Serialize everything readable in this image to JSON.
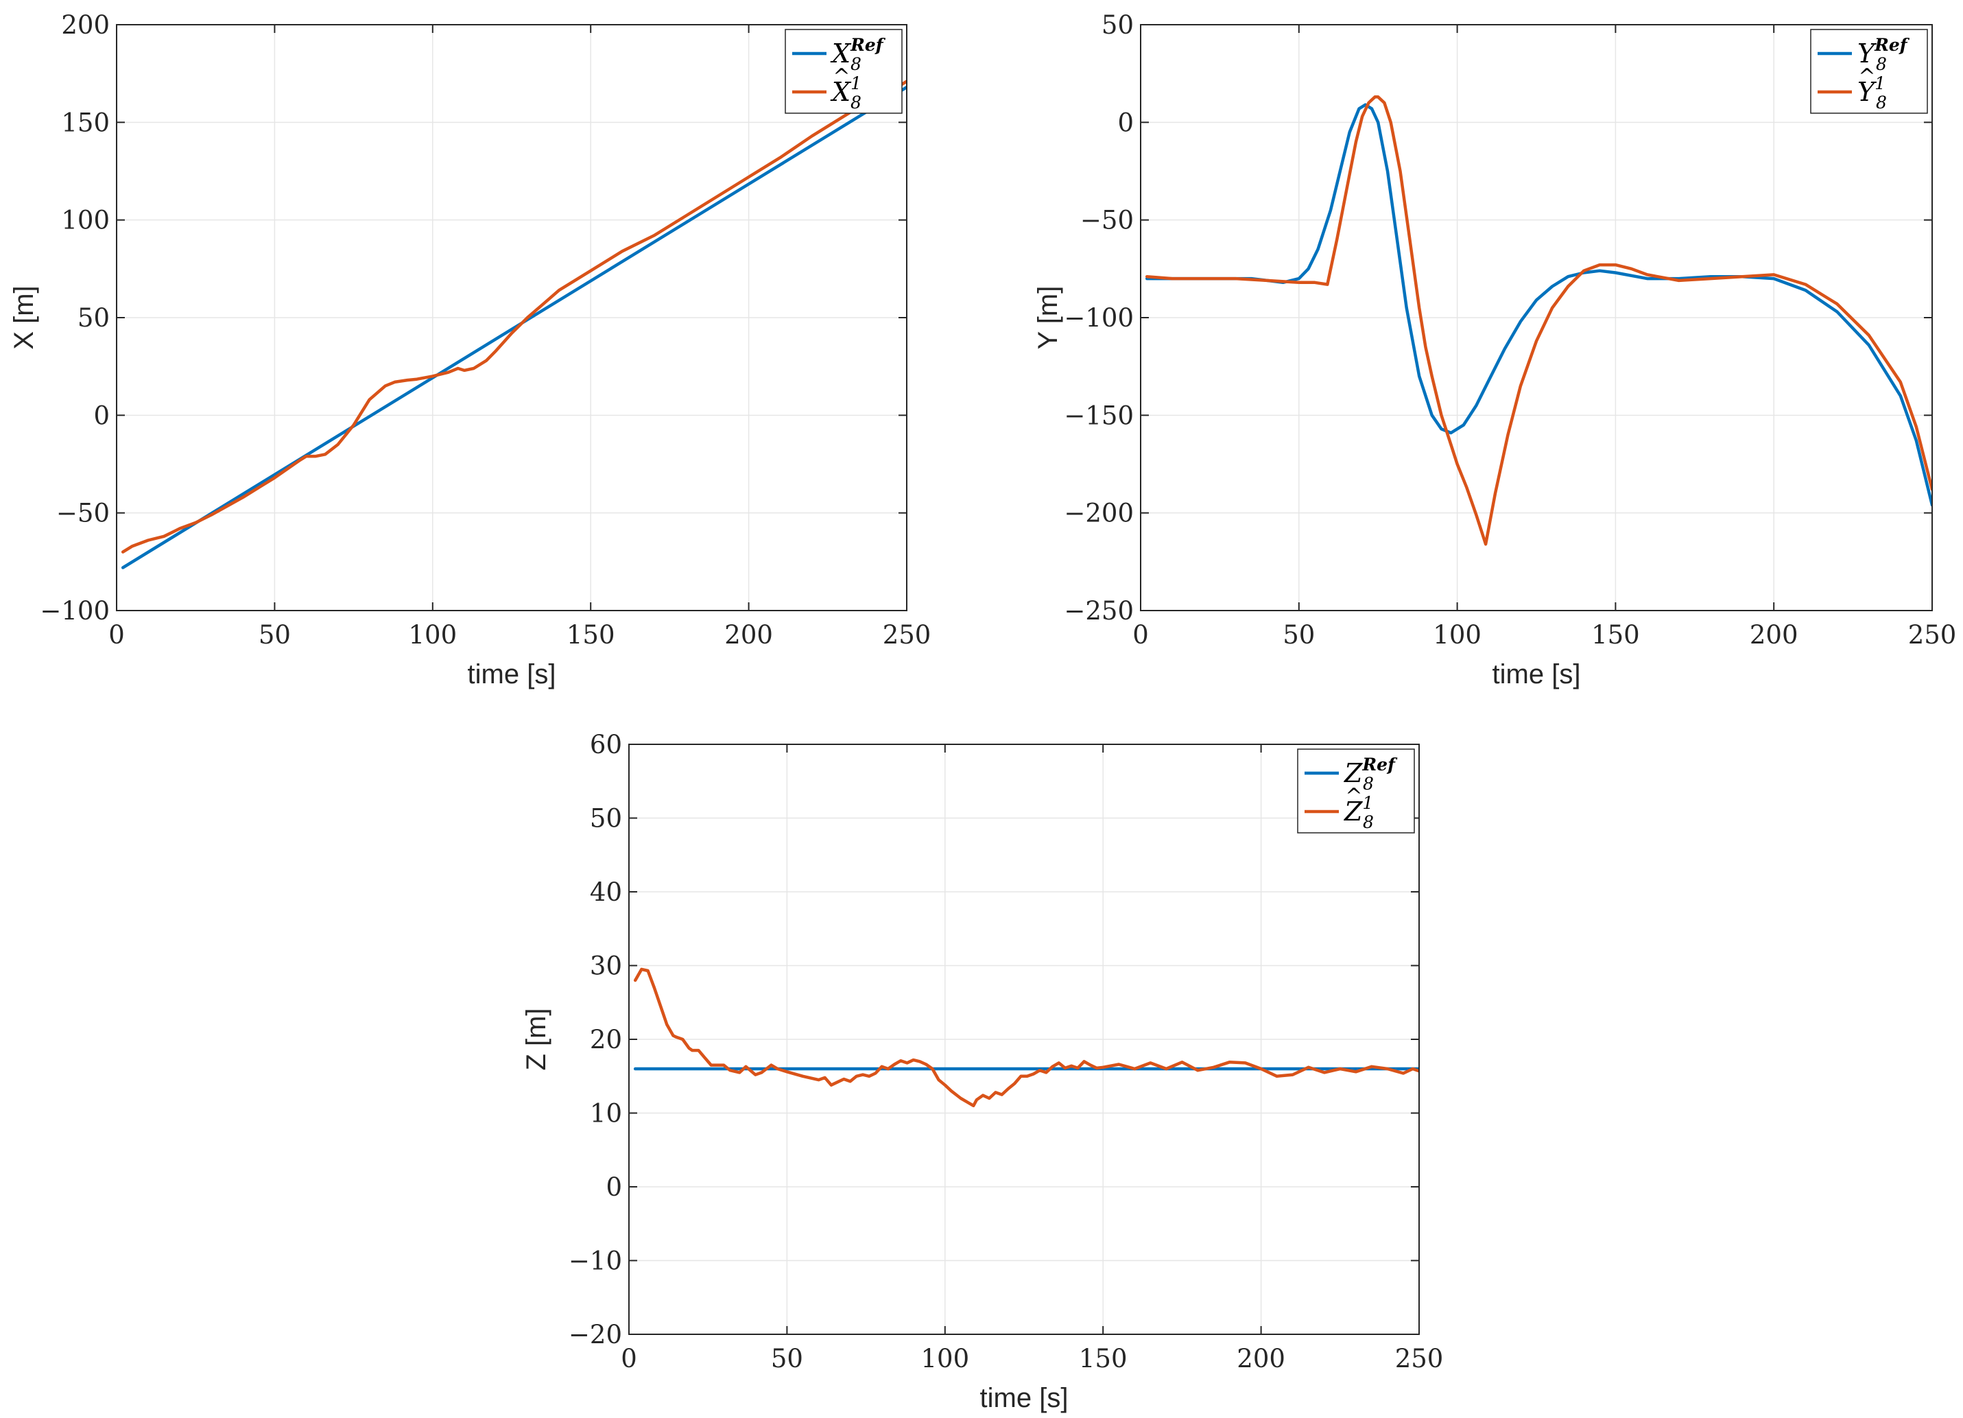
{
  "colors": {
    "reference": "#0072BD",
    "estimate": "#D95319",
    "grid": "#e6e6e6",
    "axis": "#262626"
  },
  "chart_data": [
    {
      "id": "x",
      "type": "line",
      "xlabel": "time [s]",
      "ylabel": "X [m]",
      "xlim": [
        0,
        250
      ],
      "ylim": [
        -100,
        200
      ],
      "xticks": [
        0,
        50,
        100,
        150,
        200,
        250
      ],
      "yticks": [
        -100,
        -50,
        0,
        50,
        100,
        150,
        200
      ],
      "xtick_labels": [
        "0",
        "50",
        "100",
        "150",
        "200",
        "250"
      ],
      "ytick_labels": [
        "−100",
        "−50",
        "0",
        "50",
        "100",
        "150",
        "200"
      ],
      "grid": true,
      "legend_position": "top-right",
      "series": [
        {
          "name": "X_8^Ref",
          "legend": {
            "base": "X",
            "sub": "8",
            "sup": "Ref",
            "hat": false
          },
          "color": "#0072BD",
          "x": [
            2,
            250
          ],
          "y": [
            -78,
            168
          ]
        },
        {
          "name": "X̂_8^1",
          "legend": {
            "base": "X",
            "sub": "8",
            "sup": "1",
            "hat": true
          },
          "color": "#D95319",
          "x": [
            2,
            5,
            10,
            15,
            20,
            25,
            30,
            40,
            50,
            58,
            60,
            63,
            66,
            70,
            75,
            80,
            85,
            88,
            92,
            95,
            100,
            105,
            108,
            110,
            113,
            117,
            120,
            125,
            130,
            135,
            140,
            150,
            160,
            170,
            180,
            190,
            200,
            210,
            220,
            230,
            240,
            248,
            250
          ],
          "y": [
            -70,
            -67,
            -64,
            -62,
            -58,
            -55,
            -51,
            -42,
            -32,
            -23,
            -21,
            -21,
            -20,
            -15,
            -5,
            8,
            15,
            17,
            18,
            18.5,
            20,
            22,
            24,
            23,
            24,
            28,
            33,
            42,
            50,
            57,
            64,
            74,
            84,
            92,
            102,
            112,
            122,
            132,
            143,
            153,
            163,
            169,
            171
          ]
        }
      ]
    },
    {
      "id": "y",
      "type": "line",
      "xlabel": "time [s]",
      "ylabel": "Y [m]",
      "xlim": [
        0,
        250
      ],
      "ylim": [
        -250,
        50
      ],
      "xticks": [
        0,
        50,
        100,
        150,
        200,
        250
      ],
      "yticks": [
        -250,
        -200,
        -150,
        -100,
        -50,
        0,
        50
      ],
      "xtick_labels": [
        "0",
        "50",
        "100",
        "150",
        "200",
        "250"
      ],
      "ytick_labels": [
        "−250",
        "−200",
        "−150",
        "−100",
        "−50",
        "0",
        "50"
      ],
      "grid": true,
      "legend_position": "top-right",
      "series": [
        {
          "name": "Y_8^Ref",
          "legend": {
            "base": "Y",
            "sub": "8",
            "sup": "Ref",
            "hat": false
          },
          "color": "#0072BD",
          "x": [
            2,
            10,
            20,
            30,
            35,
            40,
            45,
            50,
            53,
            56,
            60,
            63,
            66,
            69,
            71,
            73,
            75,
            78,
            81,
            84,
            88,
            92,
            95,
            98,
            102,
            106,
            110,
            115,
            120,
            125,
            130,
            135,
            140,
            145,
            150,
            160,
            170,
            180,
            190,
            200,
            210,
            220,
            230,
            240,
            245,
            250
          ],
          "y": [
            -80,
            -80,
            -80,
            -80,
            -80,
            -81,
            -82,
            -80,
            -75,
            -65,
            -45,
            -25,
            -5,
            7,
            9,
            7,
            0,
            -25,
            -60,
            -95,
            -130,
            -150,
            -157,
            -159,
            -155,
            -145,
            -132,
            -116,
            -102,
            -91,
            -84,
            -79,
            -77,
            -76,
            -77,
            -80,
            -80,
            -79,
            -79,
            -80,
            -86,
            -97,
            -114,
            -140,
            -163,
            -196
          ]
        },
        {
          "name": "Ŷ_8^1",
          "legend": {
            "base": "Y",
            "sub": "8",
            "sup": "1",
            "hat": true
          },
          "color": "#D95319",
          "x": [
            2,
            10,
            20,
            30,
            40,
            50,
            55,
            59,
            62,
            65,
            68,
            70,
            72,
            74,
            75,
            77,
            79,
            82,
            85,
            88,
            90,
            92,
            95,
            98,
            100,
            103,
            106,
            109,
            112,
            116,
            120,
            125,
            130,
            135,
            140,
            145,
            150,
            155,
            160,
            170,
            180,
            190,
            200,
            210,
            220,
            230,
            240,
            245,
            250
          ],
          "y": [
            -79,
            -80,
            -80,
            -80,
            -81,
            -82,
            -82,
            -83,
            -60,
            -35,
            -10,
            3,
            10,
            13,
            13,
            10,
            0,
            -25,
            -60,
            -95,
            -115,
            -130,
            -150,
            -165,
            -175,
            -187,
            -201,
            -216,
            -190,
            -160,
            -135,
            -112,
            -95,
            -84,
            -76,
            -73,
            -73,
            -75,
            -78,
            -81,
            -80,
            -79,
            -78,
            -83,
            -93,
            -109,
            -133,
            -156,
            -188
          ]
        }
      ]
    },
    {
      "id": "z",
      "type": "line",
      "xlabel": "time [s]",
      "ylabel": "Z [m]",
      "xlim": [
        0,
        250
      ],
      "ylim": [
        -20,
        60
      ],
      "xticks": [
        0,
        50,
        100,
        150,
        200,
        250
      ],
      "yticks": [
        -20,
        -10,
        0,
        10,
        20,
        30,
        40,
        50,
        60
      ],
      "xtick_labels": [
        "0",
        "50",
        "100",
        "150",
        "200",
        "250"
      ],
      "ytick_labels": [
        "−20",
        "−10",
        "0",
        "10",
        "20",
        "30",
        "40",
        "50",
        "60"
      ],
      "grid": true,
      "legend_position": "top-right",
      "series": [
        {
          "name": "Z_8^Ref",
          "legend": {
            "base": "Z",
            "sub": "8",
            "sup": "Ref",
            "hat": false
          },
          "color": "#0072BD",
          "x": [
            2,
            250
          ],
          "y": [
            16,
            16
          ]
        },
        {
          "name": "Ẑ_8^1",
          "legend": {
            "base": "Z",
            "sub": "8",
            "sup": "1",
            "hat": true
          },
          "color": "#D95319",
          "x": [
            2,
            4,
            6,
            8,
            10,
            12,
            14,
            15,
            17,
            19,
            20,
            22,
            24,
            26,
            28,
            30,
            32,
            35,
            37,
            40,
            42,
            45,
            47,
            50,
            55,
            60,
            62,
            64,
            66,
            68,
            70,
            72,
            74,
            76,
            78,
            80,
            82,
            84,
            86,
            88,
            90,
            92,
            94,
            96,
            98,
            100,
            102,
            105,
            107,
            109,
            110,
            112,
            114,
            116,
            118,
            120,
            122,
            124,
            126,
            128,
            130,
            132,
            134,
            136,
            138,
            140,
            142,
            144,
            146,
            148,
            150,
            155,
            160,
            165,
            170,
            175,
            180,
            185,
            190,
            195,
            200,
            205,
            210,
            215,
            220,
            225,
            230,
            235,
            240,
            245,
            248,
            250
          ],
          "y": [
            28,
            29.5,
            29.3,
            27,
            24.5,
            22,
            20.5,
            20.3,
            20,
            18.8,
            18.5,
            18.5,
            17.5,
            16.5,
            16.5,
            16.5,
            15.8,
            15.5,
            16.3,
            15.2,
            15.5,
            16.5,
            16,
            15.6,
            15.0,
            14.5,
            14.8,
            13.8,
            14.2,
            14.6,
            14.3,
            15.0,
            15.2,
            15.0,
            15.4,
            16.3,
            16.0,
            16.6,
            17.1,
            16.8,
            17.2,
            17.0,
            16.6,
            16.0,
            14.5,
            13.8,
            13.0,
            12.0,
            11.5,
            11.0,
            11.8,
            12.4,
            12.0,
            12.8,
            12.5,
            13.3,
            14.0,
            15.0,
            15.0,
            15.3,
            15.8,
            15.5,
            16.3,
            16.8,
            16.1,
            16.4,
            16.1,
            17.0,
            16.5,
            16.1,
            16.2,
            16.6,
            16.0,
            16.8,
            16.0,
            16.9,
            15.8,
            16.2,
            16.9,
            16.8,
            16.0,
            15.0,
            15.2,
            16.2,
            15.5,
            16.0,
            15.6,
            16.3,
            16.0,
            15.4,
            16.0,
            15.7
          ]
        }
      ]
    }
  ]
}
